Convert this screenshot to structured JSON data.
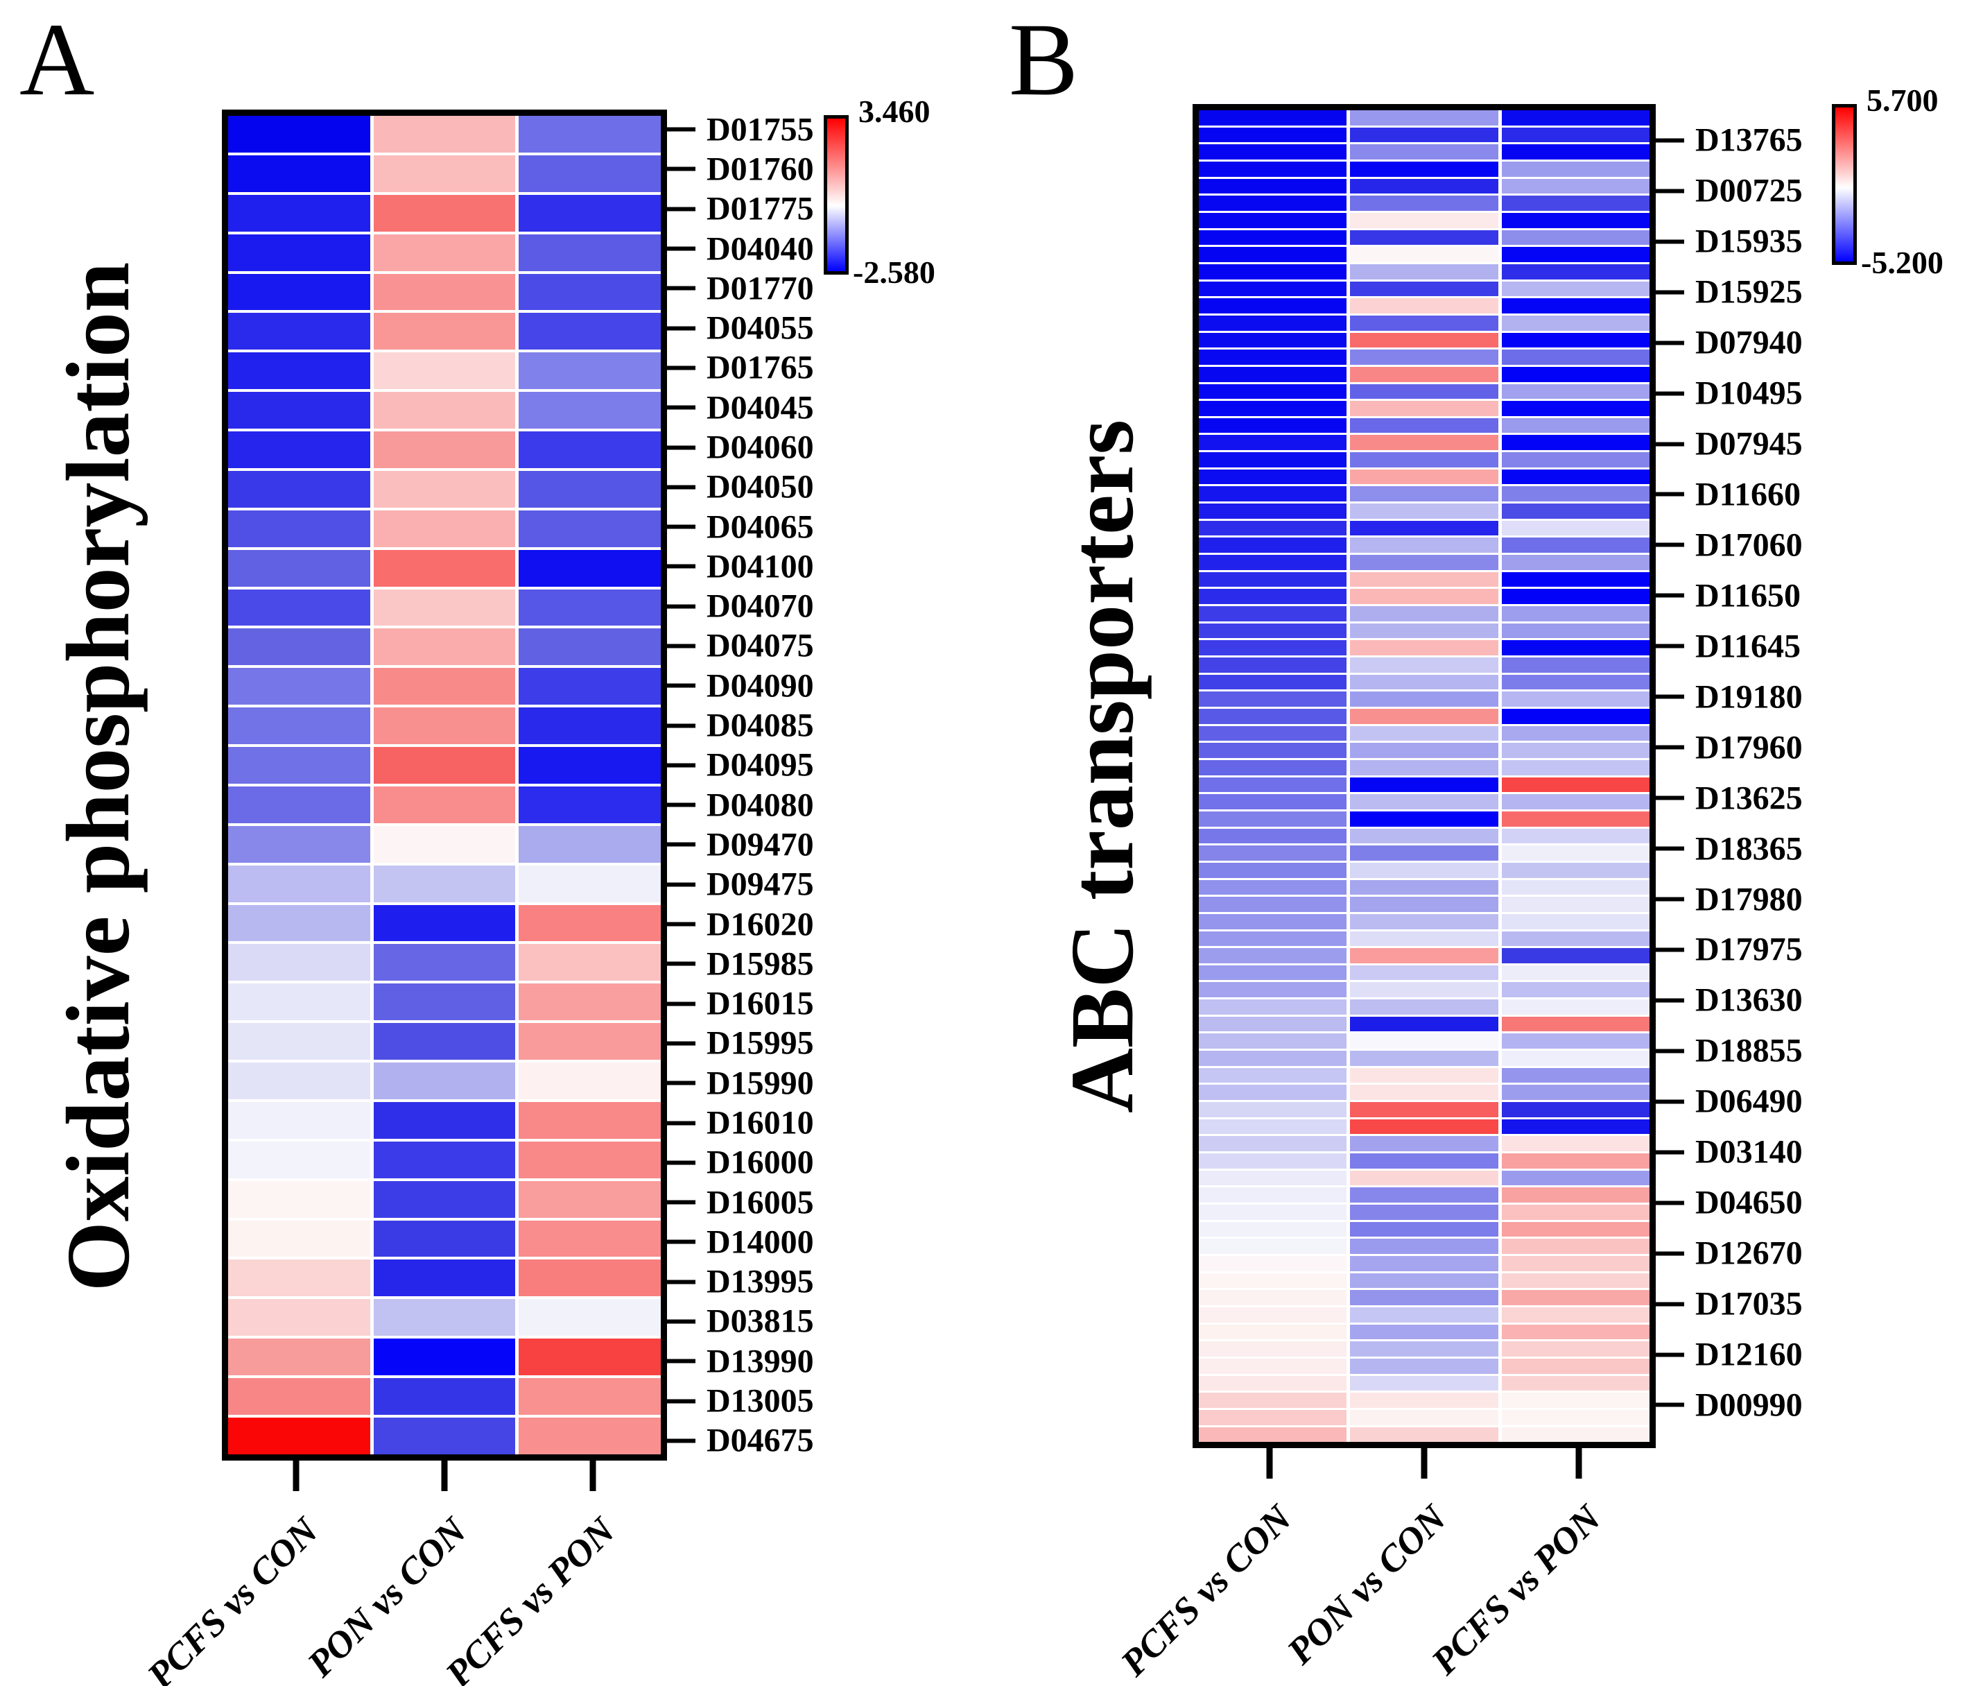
{
  "figure_type": "two-panel differential expression heatmaps",
  "chart_data": [
    {
      "type": "heatmap",
      "panel": "A",
      "title": "Oxidative phosphorylation",
      "columns": [
        "PCFS vs CON",
        "PON vs CON",
        "PCFS vs PON"
      ],
      "legend_position": "right-top colorbar",
      "colorbar": {
        "max": 3.46,
        "min": -2.58,
        "max_label": "3.460",
        "min_label": "-2.580",
        "max_color": "#FF0000",
        "mid_color": "#FFFFFF",
        "min_color": "#0000FF",
        "colormap": "red-white-blue, white at value 0 (57% from top)"
      },
      "row_labels": [
        "D01755",
        "D01760",
        "D01775",
        "D04040",
        "D01770",
        "D04055",
        "D01765",
        "D04045",
        "D04060",
        "D04050",
        "D04065",
        "D04100",
        "D04070",
        "D04075",
        "D04090",
        "D04085",
        "D04095",
        "D04080",
        "D09470",
        "D09475",
        "D16020",
        "D15985",
        "D16015",
        "D15995",
        "D15990",
        "D16010",
        "D16000",
        "D16005",
        "D14000",
        "D13995",
        "D03815",
        "D13990",
        "D13005",
        "D04675"
      ],
      "cell_colors": [
        [
          "#0404EE",
          "#FBB8B8",
          "#6E6EE8"
        ],
        [
          "#0C0CF1",
          "#FBBCBC",
          "#6060E6"
        ],
        [
          "#2020EE",
          "#F97272",
          "#2F2FEC"
        ],
        [
          "#1B1BEF",
          "#FAA6A6",
          "#5B5BE6"
        ],
        [
          "#1818F0",
          "#F99292",
          "#4B4BE8"
        ],
        [
          "#2A2AEC",
          "#F99696",
          "#4545E9"
        ],
        [
          "#2222EE",
          "#FCD6D6",
          "#8181EB"
        ],
        [
          "#2929EC",
          "#FBBABA",
          "#7C7CEA"
        ],
        [
          "#2525ED",
          "#F99A9A",
          "#3B3BEB"
        ],
        [
          "#3939EA",
          "#FBBEBE",
          "#5656E6"
        ],
        [
          "#5050E6",
          "#FAB0B0",
          "#5B5BE6"
        ],
        [
          "#6161E3",
          "#F96D6D",
          "#0F0FF2"
        ],
        [
          "#4A4AE8",
          "#FBC6C6",
          "#5757E7"
        ],
        [
          "#6464E3",
          "#FAACAC",
          "#6161E4"
        ],
        [
          "#7676E8",
          "#F98A8A",
          "#3D3DEA"
        ],
        [
          "#7373E8",
          "#F99090",
          "#2929EC"
        ],
        [
          "#7070E7",
          "#F76262",
          "#1818F0"
        ],
        [
          "#6B6BE7",
          "#F98C8C",
          "#2C2CEE"
        ],
        [
          "#8888EA",
          "#FDF5F5",
          "#AAAAEF"
        ],
        [
          "#BCBCF3",
          "#C4C4F3",
          "#F0F0FA"
        ],
        [
          "#B8B8F1",
          "#1E1EEF",
          "#F98181"
        ],
        [
          "#DADAF7",
          "#6767E5",
          "#FBC1C1"
        ],
        [
          "#E7E7FA",
          "#6060E4",
          "#FA9F9F"
        ],
        [
          "#E5E5F8",
          "#4E4EE5",
          "#FA9B9B"
        ],
        [
          "#E3E3F8",
          "#B1B1F0",
          "#FDF1F1"
        ],
        [
          "#F1F1FB",
          "#2F2FE9",
          "#F98888"
        ],
        [
          "#F3F3FB",
          "#3B3BE9",
          "#F98989"
        ],
        [
          "#FDF5F3",
          "#3D3DE8",
          "#FA9D9D"
        ],
        [
          "#FDF3F1",
          "#3B3BE6",
          "#F98C8C"
        ],
        [
          "#FBD4D4",
          "#2626EB",
          "#F87E7E"
        ],
        [
          "#FBD1D1",
          "#C1C1F2",
          "#F2F2FB"
        ],
        [
          "#F89B9B",
          "#0505FA",
          "#F84141"
        ],
        [
          "#F88686",
          "#3535E8",
          "#F99191"
        ],
        [
          "#FA0606",
          "#4545E6",
          "#F98F8F"
        ]
      ]
    },
    {
      "type": "heatmap",
      "panel": "B",
      "title": "ABC  transporters",
      "columns": [
        "PCFS vs CON",
        "PON vs CON",
        "PCFS vs PON"
      ],
      "legend_position": "right-top colorbar",
      "colorbar": {
        "max": 5.7,
        "min": -5.2,
        "max_label": "5.700",
        "min_label": "-5.200",
        "max_color": "#FF0000",
        "mid_color": "#FFFFFF",
        "min_color": "#0000FF",
        "colormap": "red-white-blue, white at value 0 (52% from top)"
      },
      "row_labels": [
        "D13765",
        "D00725",
        "D15935",
        "D15925",
        "D07940",
        "D10495",
        "D07945",
        "D11660",
        "D17060",
        "D11650",
        "D11645",
        "D19180",
        "D17960",
        "D13625",
        "D18365",
        "D17980",
        "D17975",
        "D13630",
        "D18855",
        "D06490",
        "D03140",
        "D04650",
        "D12670",
        "D17035",
        "D12160",
        "D00990"
      ],
      "tick_start_frac": 0.027,
      "tick_end_frac": 0.968,
      "cell_colors": [
        [
          "#0505F0",
          "#9898EE",
          "#0A0AF0"
        ],
        [
          "#0505F1",
          "#2E2EE9",
          "#2A2AEA"
        ],
        [
          "#0505F1",
          "#8A8AEC",
          "#0505F4"
        ],
        [
          "#0505F2",
          "#0505F5",
          "#9C9CEE"
        ],
        [
          "#0505F2",
          "#2626EB",
          "#A5A5F0"
        ],
        [
          "#0606F2",
          "#7171E9",
          "#4747E7"
        ],
        [
          "#0505F3",
          "#FCE9E9",
          "#0505F5"
        ],
        [
          "#0505F3",
          "#3737E8",
          "#8D8DEC"
        ],
        [
          "#0404F3",
          "#FDF6F6",
          "#0404F6"
        ],
        [
          "#0505F3",
          "#B1B1F0",
          "#2E2EEA"
        ],
        [
          "#0808F2",
          "#3E3EE8",
          "#B6B6F2"
        ],
        [
          "#0505F3",
          "#FCD2D2",
          "#0404F6"
        ],
        [
          "#0C0CF0",
          "#5E5EE9",
          "#B2B2F1"
        ],
        [
          "#0A0AF1",
          "#F96A6A",
          "#0202F8"
        ],
        [
          "#0808F2",
          "#8383EB",
          "#6D6DE9"
        ],
        [
          "#0707F2",
          "#F98686",
          "#0202F8"
        ],
        [
          "#0707F3",
          "#6262E8",
          "#A1A1EF"
        ],
        [
          "#0505F4",
          "#FBB8B8",
          "#0303F8"
        ],
        [
          "#0606F3",
          "#6868E8",
          "#9A9AEE"
        ],
        [
          "#1212F0",
          "#F98A8A",
          "#0303F8"
        ],
        [
          "#0C0CF1",
          "#7474EA",
          "#8383EB"
        ],
        [
          "#0C0CF2",
          "#FAA6A6",
          "#0404F7"
        ],
        [
          "#1515EF",
          "#8E8EEC",
          "#8080EA"
        ],
        [
          "#1B1BEE",
          "#BEBEF3",
          "#4C4CE7"
        ],
        [
          "#2D2DEA",
          "#2525ED",
          "#DEDEF8"
        ],
        [
          "#2020ED",
          "#B5B5F1",
          "#6E6EE9"
        ],
        [
          "#2222ED",
          "#8888EB",
          "#9F9FEE"
        ],
        [
          "#2A2AEB",
          "#FBBCBC",
          "#0202F8"
        ],
        [
          "#2B2BEB",
          "#FBB6B6",
          "#0202F8"
        ],
        [
          "#3C3CE9",
          "#AEAEEF",
          "#9E9EEE"
        ],
        [
          "#3F3FE9",
          "#B3B3F0",
          "#9A9AEE"
        ],
        [
          "#3C3CE9",
          "#FBB8B8",
          "#0505F6"
        ],
        [
          "#4343E8",
          "#CACAF4",
          "#7777EA"
        ],
        [
          "#4040E8",
          "#B5B5F1",
          "#7C7CEB"
        ],
        [
          "#5C5CE8",
          "#9C9CEE",
          "#B6B6F2"
        ],
        [
          "#5959E7",
          "#F99090",
          "#0202F8"
        ],
        [
          "#5F5FE8",
          "#C3C3F3",
          "#A9A9F0"
        ],
        [
          "#6161E8",
          "#A5A5EF",
          "#BCBCF3"
        ],
        [
          "#6666E8",
          "#B3B3F1",
          "#C3C3F4"
        ],
        [
          "#7070EA",
          "#0505F6",
          "#F84545"
        ],
        [
          "#7272EA",
          "#BBBBF2",
          "#B5B5F1"
        ],
        [
          "#8080EB",
          "#0202F8",
          "#F86A6A"
        ],
        [
          "#7777EA",
          "#B9B9F2",
          "#D2D2F6"
        ],
        [
          "#8484EB",
          "#7F7FE9",
          "#EFEFFA"
        ],
        [
          "#8282EB",
          "#D6D6F6",
          "#C4C4F3"
        ],
        [
          "#9090ED",
          "#A6A6EF",
          "#E4E4F9"
        ],
        [
          "#9292ED",
          "#A3A3EE",
          "#E8E8F9"
        ],
        [
          "#9595ED",
          "#BBBBF2",
          "#E2E2F8"
        ],
        [
          "#9898EE",
          "#DDDDF8",
          "#B9B9F2"
        ],
        [
          "#9D9DEE",
          "#FA9C9C",
          "#3A3AE4"
        ],
        [
          "#9A9AEE",
          "#CACAF4",
          "#EDEDFA"
        ],
        [
          "#A3A3EF",
          "#DFDFF8",
          "#BFBFF3"
        ],
        [
          "#C0C0F3",
          "#BDBDF2",
          "#EEEEFB"
        ],
        [
          "#BBBBF2",
          "#1D1DE9",
          "#F87878"
        ],
        [
          "#BDBDF2",
          "#F7F7FD",
          "#B3B3F1"
        ],
        [
          "#B5B5F1",
          "#B9B9F2",
          "#EFEFFB"
        ],
        [
          "#C6C6F4",
          "#FCE4E4",
          "#9595ED"
        ],
        [
          "#BFBFF3",
          "#FCE4E4",
          "#9D9DEE"
        ],
        [
          "#D5D5F6",
          "#F85E5E",
          "#2C2CE6"
        ],
        [
          "#D8D8F7",
          "#F84848",
          "#1414EE"
        ],
        [
          "#CCCCF5",
          "#A2A2EE",
          "#FCE2E2"
        ],
        [
          "#D9D9F7",
          "#7C7CEA",
          "#F9A0A0"
        ],
        [
          "#EBEBFA",
          "#FBD6D6",
          "#9B9BEE"
        ],
        [
          "#EFEFFB",
          "#8787EB",
          "#F9A2A2"
        ],
        [
          "#F0F0FB",
          "#8484EB",
          "#FBC0C0"
        ],
        [
          "#F2F2FB",
          "#7C7CEB",
          "#F9A0A0"
        ],
        [
          "#F4F4FB",
          "#9A9AEF",
          "#FBC2C2"
        ],
        [
          "#FDF6F8",
          "#A5A5EF",
          "#FBCCCC"
        ],
        [
          "#FDF4F4",
          "#A9A9F0",
          "#FBD2D2"
        ],
        [
          "#FDF2F2",
          "#9494ED",
          "#F9A8A8"
        ],
        [
          "#FDF0F0",
          "#C6C6F4",
          "#FBD4D4"
        ],
        [
          "#FDF2F0",
          "#A5A5EF",
          "#FAB2B2"
        ],
        [
          "#FCEEEE",
          "#B9B9F2",
          "#FBD0D0"
        ],
        [
          "#FCEEEE",
          "#B5B5F1",
          "#FBC6C6"
        ],
        [
          "#FCE8E8",
          "#D9D9F7",
          "#FBD2D2"
        ],
        [
          "#FBD2D2",
          "#FCE6E6",
          "#FDF4F4"
        ],
        [
          "#FBCACA",
          "#FDF2F2",
          "#FDF4F4"
        ],
        [
          "#FAB8B8",
          "#FBD2D2",
          "#FDF2F2"
        ]
      ]
    }
  ]
}
